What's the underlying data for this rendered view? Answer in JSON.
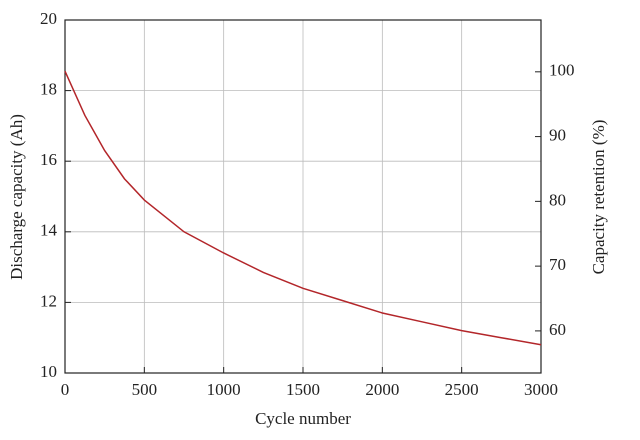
{
  "chart_data": {
    "type": "line",
    "x_label": "Cycle number",
    "y_label": "Discharge capacity (Ah)",
    "y2_label": "Capacity retention (%)",
    "x": [
      0,
      125,
      250,
      375,
      500,
      750,
      1000,
      1250,
      1500,
      1750,
      2000,
      2250,
      2500,
      2750,
      3000
    ],
    "series": [
      {
        "name": "Discharge capacity",
        "color": "#b3262a",
        "values": [
          18.55,
          17.3,
          16.3,
          15.5,
          14.9,
          14.0,
          13.4,
          12.85,
          12.4,
          12.05,
          11.7,
          11.45,
          11.2,
          11.0,
          10.8
        ]
      }
    ],
    "xlim": [
      0,
      3000
    ],
    "xticks": [
      0,
      500,
      1000,
      1500,
      2000,
      2500,
      3000
    ],
    "ylim": [
      10,
      20
    ],
    "yticks": [
      10,
      12,
      14,
      16,
      18,
      20
    ],
    "y2lim": [
      53.5,
      108
    ],
    "y2ticks": [
      60,
      70,
      80,
      90,
      100
    ],
    "grid": true
  }
}
